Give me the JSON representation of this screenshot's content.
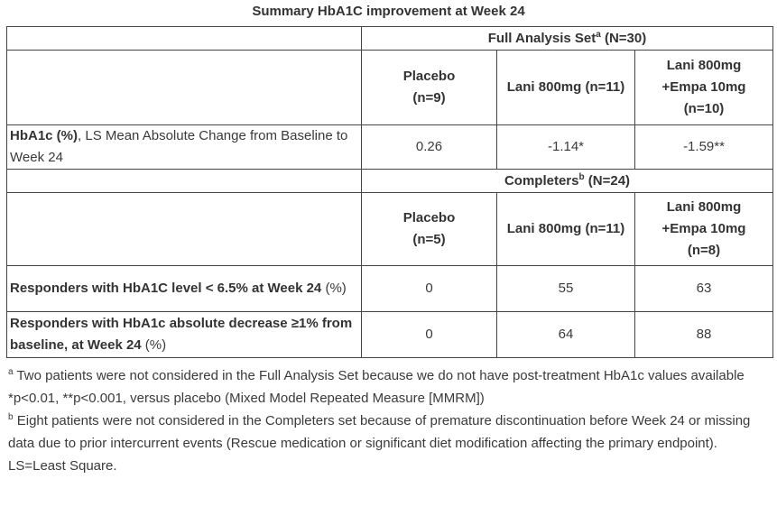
{
  "title": "Summary HbA1C improvement at Week 24",
  "fas": {
    "header": "Full Analysis Set",
    "header_sup": "a",
    "header_n": " (N=30)",
    "columns": [
      {
        "line1": "Placebo",
        "line2": "(n=9)"
      },
      {
        "line1": "Lani 800mg (n=11)"
      },
      {
        "line1": "Lani 800mg",
        "line2": "+Empa 10mg",
        "line3": "(n=10)"
      }
    ],
    "row": {
      "label_bold": "HbA1c (%)",
      "label_rest": ", LS Mean Absolute Change from Baseline to Week 24",
      "values": [
        "0.26",
        "-1.14*",
        "-1.59**"
      ]
    }
  },
  "completers": {
    "header": "Completers",
    "header_sup": "b",
    "header_n": " (N=24)",
    "columns": [
      {
        "line1": "Placebo",
        "line2": "(n=5)"
      },
      {
        "line1": "Lani 800mg (n=11)"
      },
      {
        "line1": "Lani 800mg",
        "line2": "+Empa 10mg",
        "line3": "(n=8)"
      }
    ],
    "rows": [
      {
        "label_bold": "Responders with HbA1C level < 6.5% at Week 24",
        "label_rest": " (%)",
        "values": [
          "0",
          "55",
          "63"
        ]
      },
      {
        "label_bold": "Responders with HbA1c absolute decrease ≥1% from baseline, at Week 24",
        "label_rest": " (%)",
        "values": [
          "0",
          "64",
          "88"
        ]
      }
    ]
  },
  "footnotes": {
    "a_sup": "a",
    "a": " Two patients were not considered in the Full Analysis Set because we do not have post-treatment HbA1c values available",
    "p": "*p<0.01, **p<0.001, versus placebo (Mixed Model Repeated Measure [MMRM])",
    "b_sup": "b",
    "b": " Eight patients were not considered in the Completers set because of premature discontinuation before Week 24 or missing data due to prior intercurrent events (Rescue medication or significant diet modification affecting the primary endpoint).",
    "ls": "LS=Least Square."
  }
}
